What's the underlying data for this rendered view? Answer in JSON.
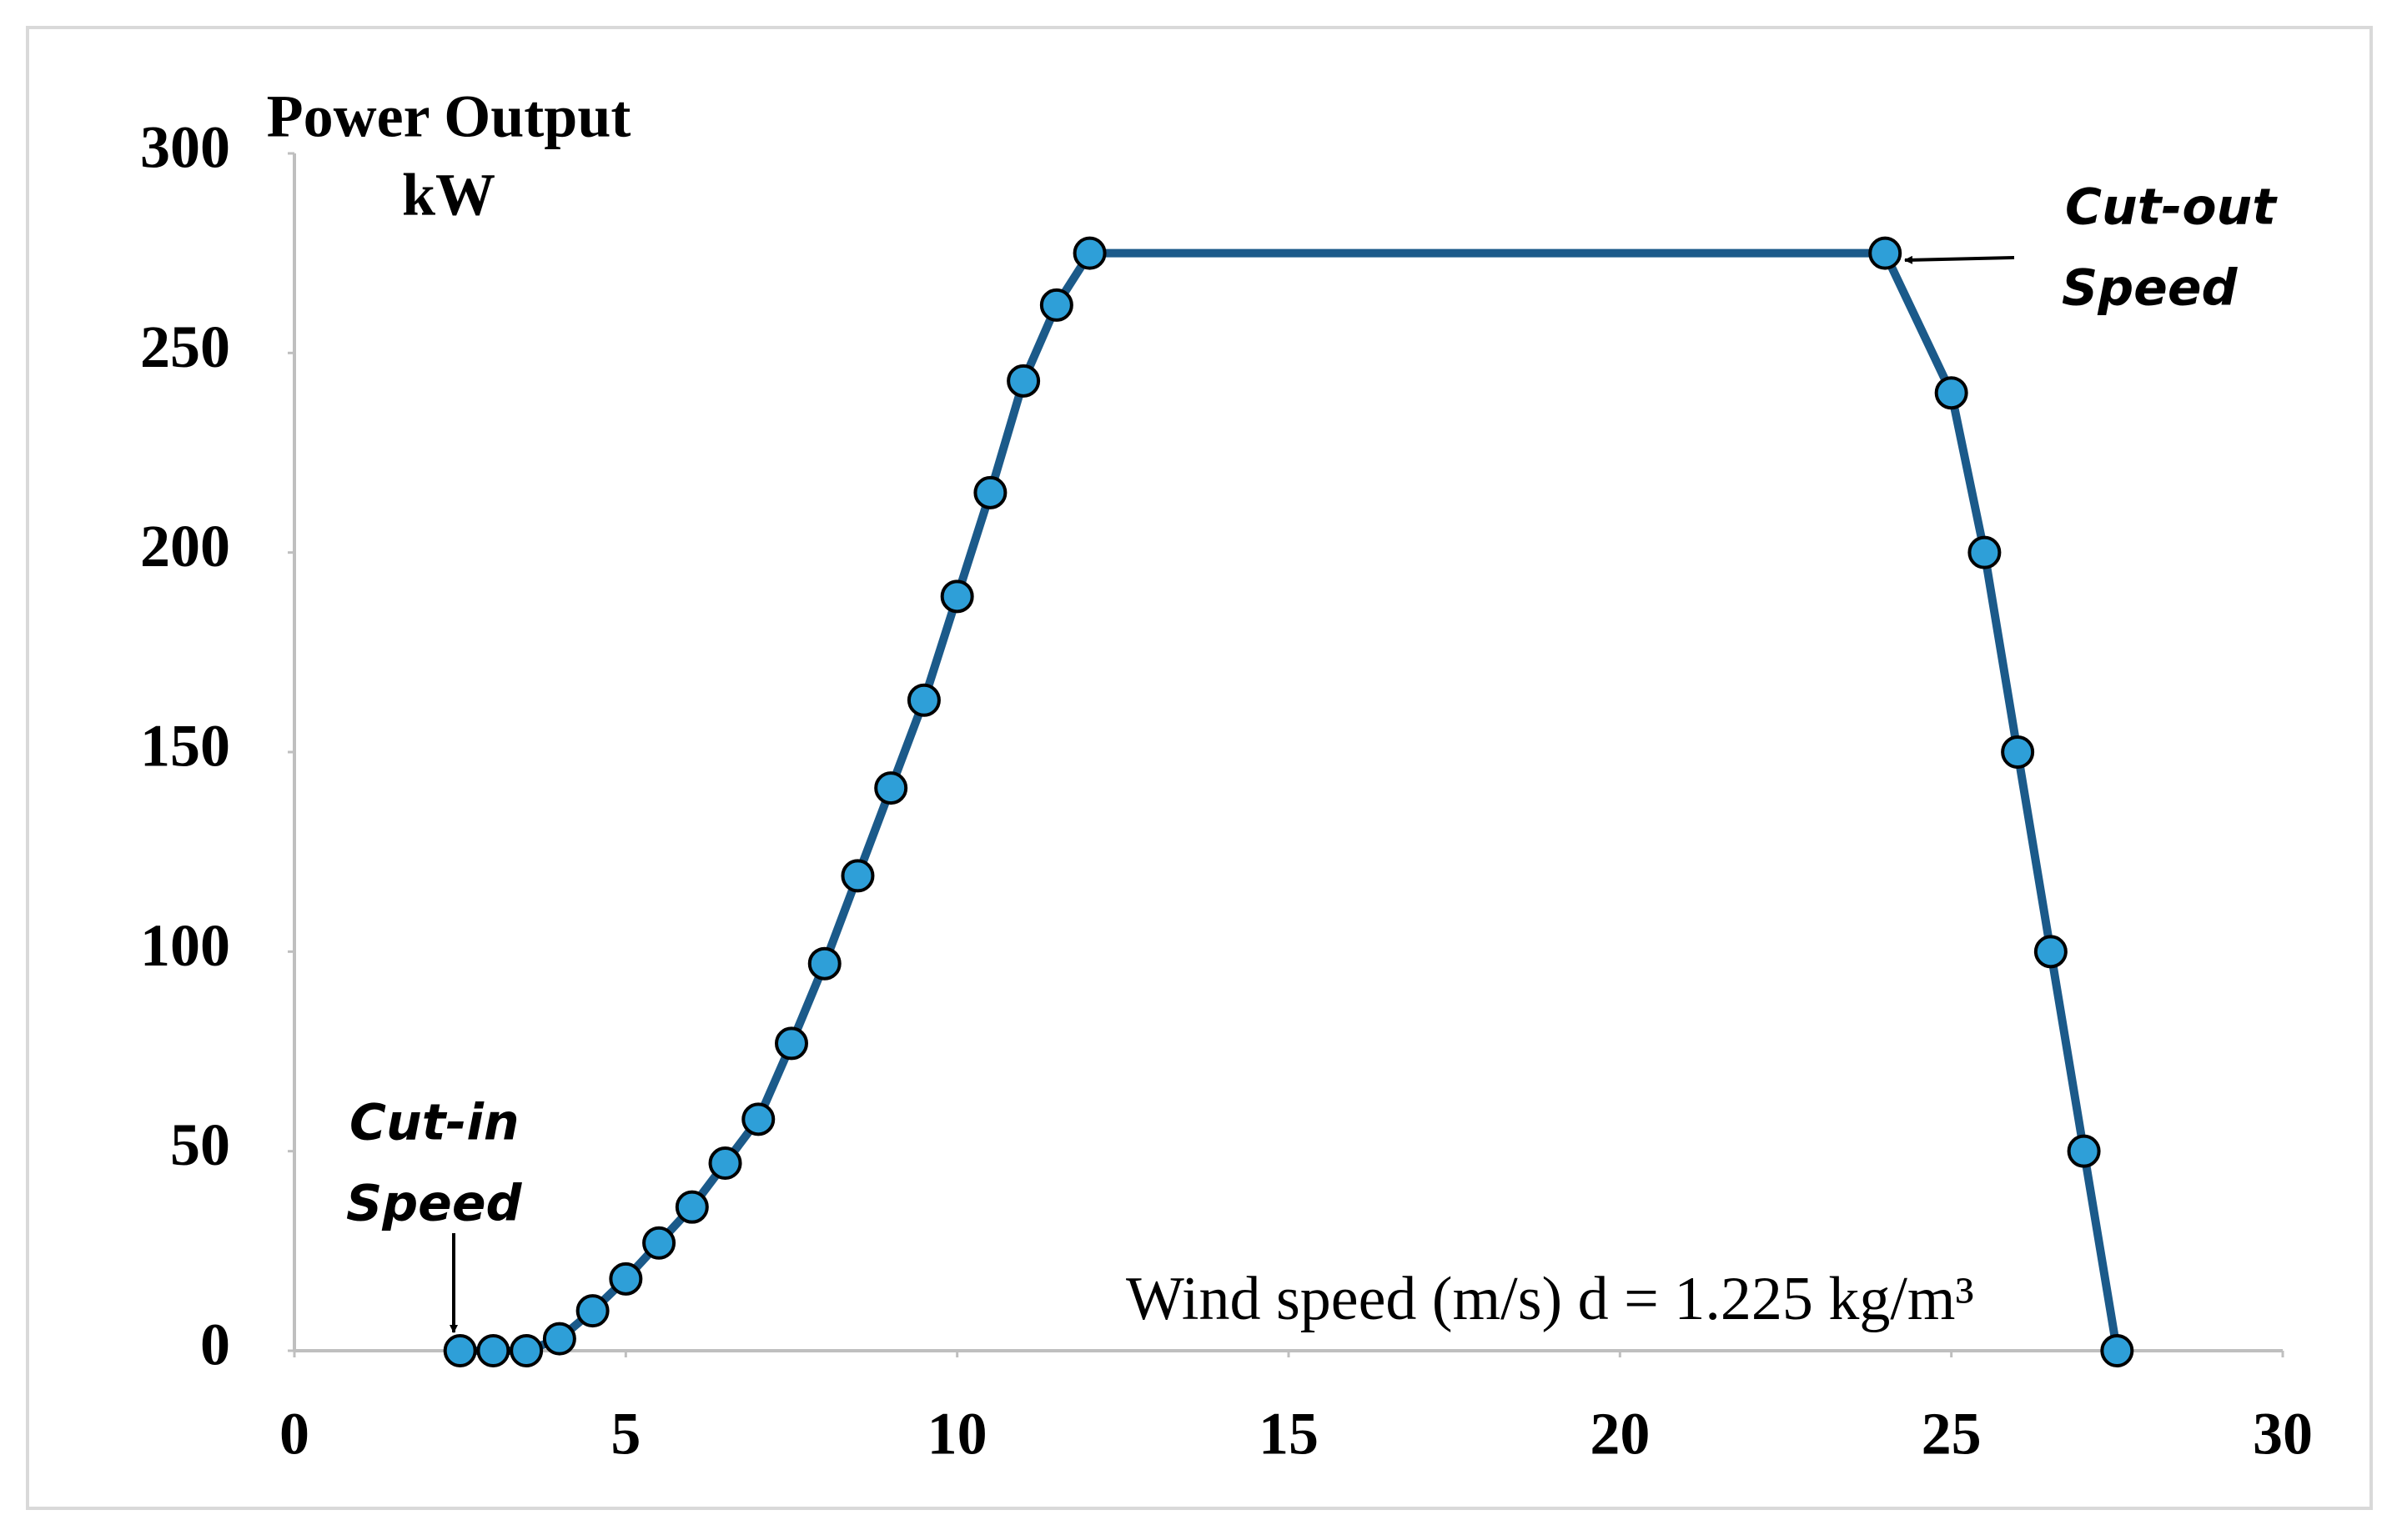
{
  "chart_data": {
    "type": "line",
    "ylabel": [
      "Power Output",
      "kW"
    ],
    "xlabel": "Wind speed (m/s) d = 1.225 kg/m³",
    "annotations": [
      [
        "Cut-in",
        "Speed"
      ],
      [
        "Cut-out",
        "Speed"
      ]
    ],
    "x": [
      2.5,
      3,
      3.5,
      4,
      4.5,
      5,
      5.5,
      6,
      6.5,
      7,
      7.5,
      8,
      8.5,
      9,
      9.5,
      10,
      10.5,
      11,
      11.5,
      12,
      24,
      25,
      25.5,
      26,
      26.5,
      27,
      27.5
    ],
    "series": [
      {
        "color": "#1b5a8a",
        "marker_color": "#2e9fd8",
        "values": [
          0,
          0,
          0,
          3,
          10,
          18,
          27,
          36,
          47,
          58,
          77,
          97,
          119,
          141,
          163,
          189,
          215,
          243,
          262,
          275,
          275,
          240,
          200,
          150,
          100,
          50,
          0
        ]
      }
    ],
    "xlim": [
      0,
      30
    ],
    "xticks": [
      0,
      5,
      10,
      15,
      20,
      25,
      30
    ],
    "ylim": [
      0,
      300
    ],
    "yticks": [
      0,
      50,
      100,
      150,
      200,
      250,
      300
    ],
    "grid": false
  }
}
